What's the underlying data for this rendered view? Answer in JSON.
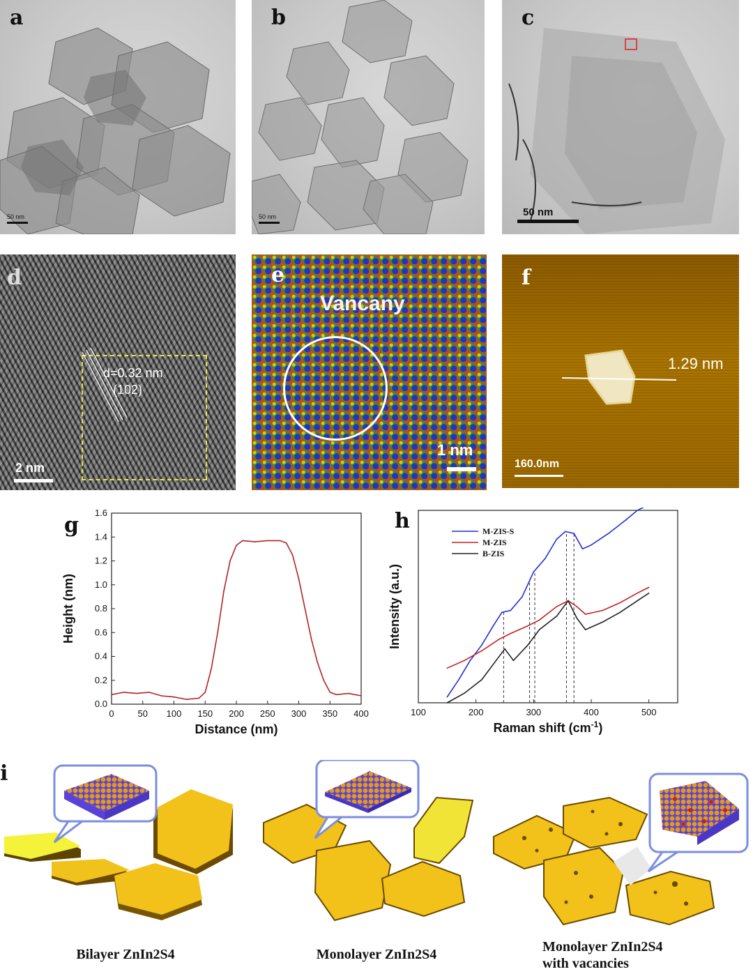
{
  "panels": {
    "a": {
      "letter": "a",
      "scale": "50 nm"
    },
    "b": {
      "letter": "b",
      "scale": "50 nm"
    },
    "c": {
      "letter": "c",
      "scale": "50 nm"
    },
    "d": {
      "letter": "d",
      "scale": "2 nm",
      "d_spacing": "d=0.32 nm",
      "plane": "(102)"
    },
    "e": {
      "letter": "e",
      "title": "Vancany",
      "scale": "1 nm"
    },
    "f": {
      "letter": "f",
      "scale": "160.0nm",
      "height_label": "1.29 nm"
    },
    "g": {
      "letter": "g"
    },
    "h": {
      "letter": "h"
    },
    "i": {
      "letter": "i"
    }
  },
  "chart_data": [
    {
      "type": "line",
      "panel": "g",
      "xlabel": "Distance (nm)",
      "ylabel": "Height (nm)",
      "xlim": [
        0,
        400
      ],
      "ylim": [
        0.0,
        1.6
      ],
      "xticks": [
        "0",
        "50",
        "100",
        "150",
        "200",
        "250",
        "300",
        "350",
        "400"
      ],
      "yticks": [
        "0.0",
        "0.2",
        "0.4",
        "0.6",
        "0.8",
        "1.0",
        "1.2",
        "1.4",
        "1.6"
      ],
      "series": [
        {
          "color": "#b22222",
          "x": [
            0,
            20,
            40,
            60,
            80,
            100,
            120,
            140,
            150,
            160,
            170,
            180,
            190,
            200,
            210,
            230,
            250,
            270,
            280,
            290,
            300,
            310,
            320,
            330,
            340,
            350,
            360,
            380,
            400
          ],
          "y": [
            0.08,
            0.1,
            0.09,
            0.1,
            0.07,
            0.06,
            0.04,
            0.05,
            0.1,
            0.3,
            0.6,
            0.95,
            1.2,
            1.33,
            1.37,
            1.36,
            1.37,
            1.37,
            1.35,
            1.25,
            1.05,
            0.8,
            0.55,
            0.35,
            0.2,
            0.1,
            0.08,
            0.09,
            0.07
          ]
        }
      ]
    },
    {
      "type": "line",
      "panel": "h",
      "xlabel": "Raman shift (cm",
      "xlabel_sup": "-1",
      "xlabel_end": ")",
      "ylabel": "Intensity (a.u.)",
      "xlim": [
        100,
        550
      ],
      "ylim": [
        0,
        1.0
      ],
      "xticks": [
        "100",
        "200",
        "300",
        "400",
        "500"
      ],
      "reference_lines": [
        248,
        293,
        302,
        357,
        370
      ],
      "legend_position": "upper-left",
      "series": [
        {
          "name": "M-ZIS-S",
          "color": "#1f2fd6",
          "x": [
            150,
            170,
            190,
            210,
            230,
            245,
            260,
            280,
            300,
            320,
            340,
            355,
            370,
            385,
            400,
            430,
            460,
            480,
            500
          ],
          "y": [
            0.03,
            0.12,
            0.22,
            0.3,
            0.4,
            0.47,
            0.48,
            0.55,
            0.68,
            0.75,
            0.85,
            0.89,
            0.88,
            0.8,
            0.82,
            0.88,
            0.95,
            1.0,
            1.03
          ]
        },
        {
          "name": "M-ZIS",
          "color": "#c42020",
          "x": [
            150,
            180,
            210,
            240,
            260,
            290,
            310,
            340,
            360,
            375,
            390,
            420,
            450,
            480,
            500
          ],
          "y": [
            0.18,
            0.22,
            0.27,
            0.33,
            0.36,
            0.4,
            0.43,
            0.5,
            0.53,
            0.5,
            0.46,
            0.48,
            0.52,
            0.57,
            0.6
          ]
        },
        {
          "name": "B-ZIS",
          "color": "#222222",
          "x": [
            150,
            180,
            210,
            235,
            250,
            265,
            290,
            310,
            340,
            360,
            375,
            390,
            420,
            450,
            480,
            500
          ],
          "y": [
            0.0,
            0.05,
            0.12,
            0.22,
            0.28,
            0.22,
            0.3,
            0.38,
            0.45,
            0.53,
            0.44,
            0.38,
            0.42,
            0.47,
            0.53,
            0.57
          ]
        }
      ]
    }
  ],
  "captions": {
    "bilayer": "Bilayer ZnIn2S4",
    "monolayer": "Monolayer ZnIn2S4",
    "vacancies_line1": "Monolayer ZnIn2S4",
    "vacancies_line2": "with vacancies"
  },
  "colors": {
    "flake_top": "#f2c21a",
    "flake_edge": "#6b4a00",
    "bubble_border": "#7a8ee0",
    "atom_gold": "#e39a1a",
    "atom_blue": "#4a3ad6"
  }
}
